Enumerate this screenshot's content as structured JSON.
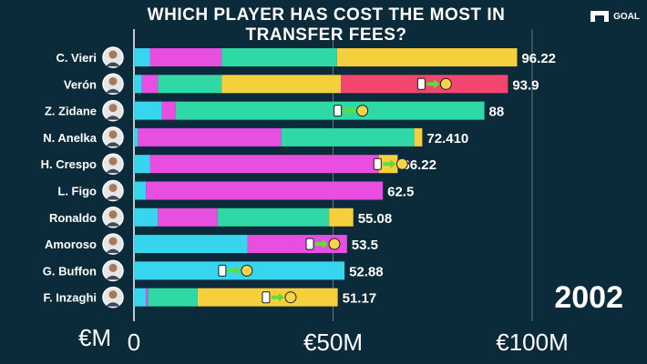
{
  "title": "WHICH PLAYER HAS COST THE MOST IN TRANSFER FEES?",
  "logo_text": "GOAL",
  "year": "2002",
  "unit_label": "€M",
  "colors": {
    "background": "#0b2b3a",
    "cyan": "#38d6ee",
    "magenta": "#e84ee0",
    "teal": "#2fd9a6",
    "yellow": "#f5cf3c",
    "red": "#f2466e",
    "arrow": "#5bdf3a"
  },
  "chart_data": {
    "type": "bar",
    "orientation": "horizontal",
    "stacked": true,
    "title": "WHICH PLAYER HAS COST THE MOST IN TRANSFER FEES?",
    "xlim": [
      0,
      118
    ],
    "xticks": [
      {
        "value": 0,
        "label": "0"
      },
      {
        "value": 50,
        "label": "€50M"
      },
      {
        "value": 100,
        "label": "€100M"
      }
    ],
    "grid": true,
    "categories": [
      "C. Vieri",
      "Verón",
      "Z. Zidane",
      "N. Anelka",
      "H. Crespo",
      "L. Figo",
      "Ronaldo",
      "Amoroso",
      "G. Buffon",
      "F. Inzaghi"
    ],
    "totals": [
      "96.22",
      "93.9",
      "88",
      "72.410",
      "66.22",
      "62.5",
      "55.08",
      "53.5",
      "52.88",
      "51.17"
    ],
    "segments": [
      [
        {
          "v": 4,
          "c": "cyan"
        },
        {
          "v": 18,
          "c": "magenta"
        },
        {
          "v": 29,
          "c": "teal"
        },
        {
          "v": 45.22,
          "c": "yellow"
        }
      ],
      [
        {
          "v": 2,
          "c": "cyan"
        },
        {
          "v": 4,
          "c": "magenta"
        },
        {
          "v": 16,
          "c": "teal"
        },
        {
          "v": 30,
          "c": "yellow"
        },
        {
          "v": 41.9,
          "c": "red"
        }
      ],
      [
        {
          "v": 7,
          "c": "cyan"
        },
        {
          "v": 3.5,
          "c": "magenta"
        },
        {
          "v": 77.5,
          "c": "teal"
        }
      ],
      [
        {
          "v": 1,
          "c": "cyan"
        },
        {
          "v": 36,
          "c": "magenta"
        },
        {
          "v": 33.4,
          "c": "teal"
        },
        {
          "v": 2,
          "c": "yellow"
        }
      ],
      [
        {
          "v": 4,
          "c": "cyan"
        },
        {
          "v": 57.5,
          "c": "magenta"
        },
        {
          "v": 4.72,
          "c": "yellow"
        }
      ],
      [
        {
          "v": 3,
          "c": "cyan"
        },
        {
          "v": 59.5,
          "c": "magenta"
        }
      ],
      [
        {
          "v": 6,
          "c": "cyan"
        },
        {
          "v": 15,
          "c": "magenta"
        },
        {
          "v": 28,
          "c": "teal"
        },
        {
          "v": 6.08,
          "c": "yellow"
        }
      ],
      [
        {
          "v": 28.5,
          "c": "cyan"
        },
        {
          "v": 25,
          "c": "magenta"
        }
      ],
      [
        {
          "v": 52.88,
          "c": "cyan"
        }
      ],
      [
        {
          "v": 3,
          "c": "cyan"
        },
        {
          "v": 0.5,
          "c": "magenta"
        },
        {
          "v": 12.5,
          "c": "teal"
        },
        {
          "v": 35.17,
          "c": "yellow"
        }
      ]
    ],
    "transfers": [
      {
        "row": 1,
        "at": 74
      },
      {
        "row": 2,
        "at": 53
      },
      {
        "row": 4,
        "at": 63
      },
      {
        "row": 7,
        "at": 46
      },
      {
        "row": 8,
        "at": 24
      },
      {
        "row": 9,
        "at": 35
      }
    ]
  }
}
